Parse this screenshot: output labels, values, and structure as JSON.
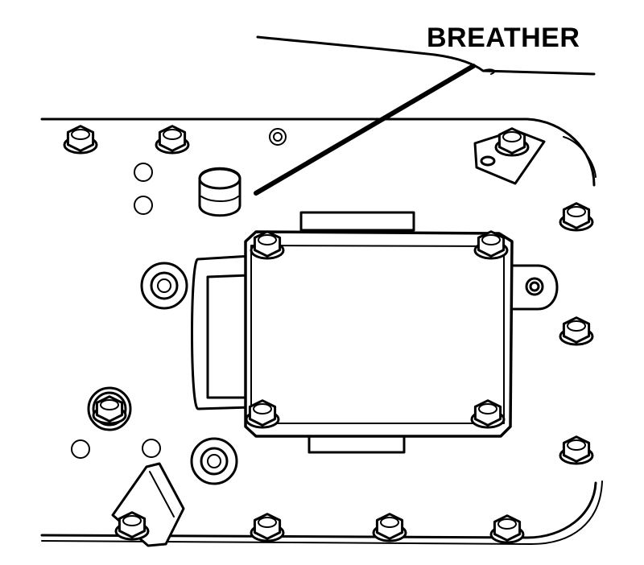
{
  "labels": {
    "breather": "BREATHER"
  }
}
